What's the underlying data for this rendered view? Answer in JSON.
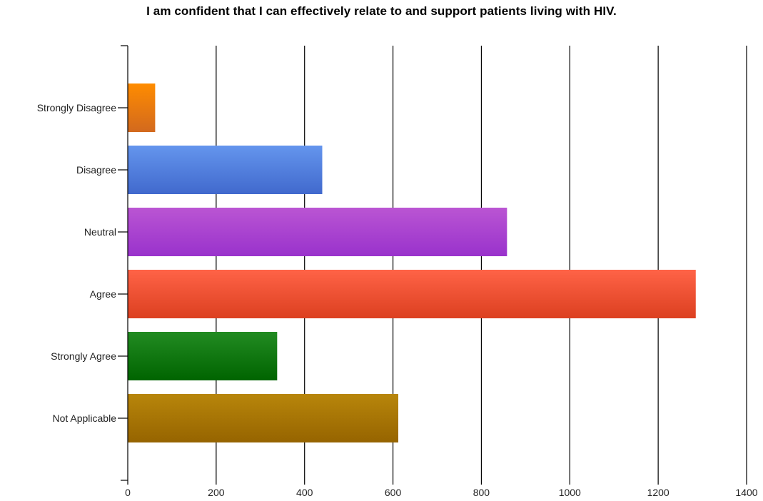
{
  "chart_data": {
    "type": "bar",
    "orientation": "horizontal",
    "title": "I am confident that I can effectively relate to and support patients living with HIV.",
    "xlabel": "",
    "ylabel": "",
    "categories": [
      "Strongly Disagree",
      "Disagree",
      "Neutral",
      "Agree",
      "Strongly Agree",
      "Not Applicable"
    ],
    "values": [
      62,
      440,
      858,
      1285,
      338,
      612
    ],
    "xlim": [
      0,
      1400
    ],
    "xticks": [
      0,
      200,
      400,
      600,
      800,
      1000,
      1200,
      1400
    ],
    "grid": true,
    "legend": "none",
    "colors": [
      [
        "#ff8c00",
        "#d2691e"
      ],
      [
        "#6495ed",
        "#4169cd"
      ],
      [
        "#ba55d3",
        "#9932cc"
      ],
      [
        "#ff6347",
        "#dc4020"
      ],
      [
        "#228b22",
        "#006400"
      ],
      [
        "#b8860b",
        "#966400"
      ]
    ]
  }
}
